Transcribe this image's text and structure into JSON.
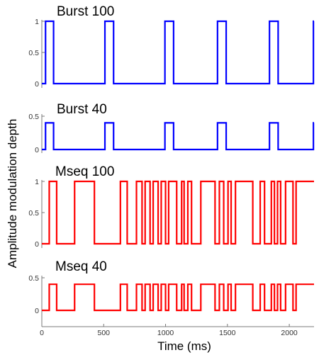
{
  "chart_data": {
    "type": "line",
    "xlabel": "Time (ms)",
    "ylabel": "Amplitude modulation depth",
    "xlim": [
      0,
      2200
    ],
    "xticks": [
      0,
      500,
      1000,
      1500,
      2000
    ],
    "panels": [
      {
        "title": "Burst 100",
        "color": "#0000ff",
        "ylim": [
          0,
          1
        ],
        "yticks": [
          0,
          0.5,
          1
        ],
        "ytick_labels": [
          "0",
          "0.5",
          "1"
        ],
        "amplitude": 1,
        "on_intervals": [
          [
            30,
            95
          ],
          [
            510,
            580
          ],
          [
            995,
            1065
          ],
          [
            1420,
            1490
          ],
          [
            1840,
            1910
          ],
          [
            2195,
            2200
          ]
        ]
      },
      {
        "title": "Burst 40",
        "color": "#0000ff",
        "ylim": [
          0,
          0.5
        ],
        "yticks": [
          0,
          0.5
        ],
        "ytick_labels": [
          "0",
          "0.5"
        ],
        "amplitude": 0.4,
        "on_intervals": [
          [
            30,
            95
          ],
          [
            510,
            580
          ],
          [
            995,
            1065
          ],
          [
            1420,
            1490
          ],
          [
            1840,
            1910
          ],
          [
            2195,
            2200
          ]
        ]
      },
      {
        "title": "Mseq 100",
        "color": "#ff0000",
        "ylim": [
          0,
          1
        ],
        "yticks": [
          0,
          0.5,
          1
        ],
        "ytick_labels": [
          "0",
          "0.5",
          "1"
        ],
        "amplitude": 1,
        "on_intervals": [
          [
            60,
            120
          ],
          [
            265,
            425
          ],
          [
            635,
            690
          ],
          [
            765,
            810
          ],
          [
            835,
            875
          ],
          [
            900,
            940
          ],
          [
            965,
            1000
          ],
          [
            1025,
            1090
          ],
          [
            1130,
            1150
          ],
          [
            1180,
            1210
          ],
          [
            1285,
            1400
          ],
          [
            1435,
            1470
          ],
          [
            1505,
            1530
          ],
          [
            1565,
            1705
          ],
          [
            1765,
            1800
          ],
          [
            1855,
            1880
          ],
          [
            1905,
            1930
          ],
          [
            1970,
            2030
          ],
          [
            2055,
            2200
          ]
        ]
      },
      {
        "title": "Mseq 40",
        "color": "#ff0000",
        "ylim": [
          0,
          0.5
        ],
        "yticks": [
          0,
          0.5
        ],
        "ytick_labels": [
          "0",
          "0.5"
        ],
        "amplitude": 0.4,
        "on_intervals": [
          [
            60,
            120
          ],
          [
            265,
            425
          ],
          [
            635,
            690
          ],
          [
            765,
            810
          ],
          [
            835,
            875
          ],
          [
            900,
            940
          ],
          [
            965,
            1000
          ],
          [
            1025,
            1090
          ],
          [
            1130,
            1150
          ],
          [
            1180,
            1210
          ],
          [
            1285,
            1400
          ],
          [
            1435,
            1470
          ],
          [
            1505,
            1530
          ],
          [
            1565,
            1705
          ],
          [
            1765,
            1800
          ],
          [
            1855,
            1880
          ],
          [
            1905,
            1930
          ],
          [
            1970,
            2030
          ],
          [
            2055,
            2200
          ]
        ]
      }
    ]
  }
}
